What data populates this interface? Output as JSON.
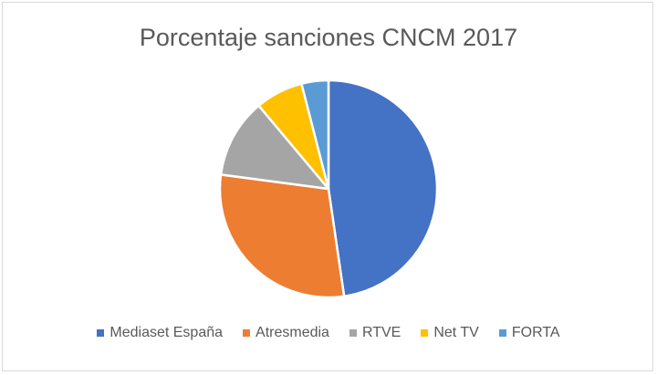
{
  "chart_data": {
    "type": "pie",
    "title": "Porcentaje sanciones CNCM 2017",
    "categories": [
      "Mediaset España",
      "Atresmedia",
      "RTVE",
      "Net TV",
      "FORTA"
    ],
    "values": [
      47.7,
      29.4,
      11.8,
      7.1,
      4.0
    ],
    "colors": [
      "#4472C4",
      "#ED7D31",
      "#A5A5A5",
      "#FFC000",
      "#5B9BD5"
    ],
    "start_angle_deg": 0,
    "direction": "clockwise",
    "legend_position": "bottom",
    "data_labels": false
  },
  "legend": [
    {
      "label": "Mediaset España",
      "color": "#4472C4"
    },
    {
      "label": "Atresmedia",
      "color": "#ED7D31"
    },
    {
      "label": "RTVE",
      "color": "#A5A5A5"
    },
    {
      "label": "Net TV",
      "color": "#FFC000"
    },
    {
      "label": "FORTA",
      "color": "#5B9BD5"
    }
  ]
}
